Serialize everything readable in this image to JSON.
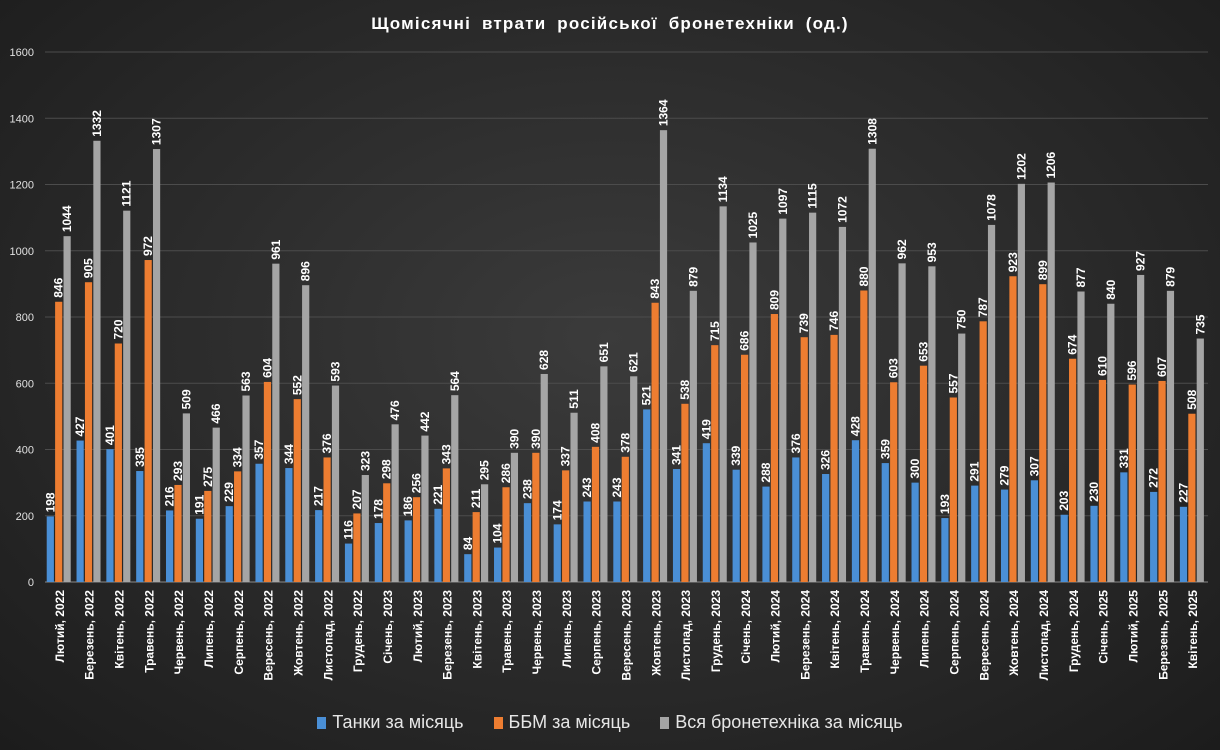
{
  "chart_data": {
    "type": "bar",
    "title": "Щомісячні  втрати  російської  бронетехніки  (од.)",
    "xlabel": "",
    "ylabel": "",
    "ylim": [
      0,
      1600
    ],
    "yticks": [
      "0",
      "200",
      "400",
      "600",
      "800",
      "1000",
      "1200",
      "1400",
      "1600"
    ],
    "grid": true,
    "legend_position": "bottom",
    "categories": [
      "Лютий, 2022",
      "Березень, 2022",
      "Квітень, 2022",
      "Травень, 2022",
      "Червень, 2022",
      "Липень, 2022",
      "Серпень, 2022",
      "Вересень, 2022",
      "Жовтень, 2022",
      "Листопад, 2022",
      "Грудень, 2022",
      "Січень, 2023",
      "Лютий, 2023",
      "Березень, 2023",
      "Квітень, 2023",
      "Травень, 2023",
      "Червень, 2023",
      "Липень, 2023",
      "Серпень, 2023",
      "Вересень, 2023",
      "Жовтень, 2023",
      "Листопад, 2023",
      "Грудень, 2023",
      "Січень, 2024",
      "Лютий, 2024",
      "Березень, 2024",
      "Квітень, 2024",
      "Травень, 2024",
      "Червень, 2024",
      "Липень, 2024",
      "Серпень, 2024",
      "Вересень, 2024",
      "Жовтень, 2024",
      "Листопад, 2024",
      "Грудень, 2024",
      "Січень, 2025",
      "Лютий, 2025",
      "Березень, 2025",
      "Квітень, 2025"
    ],
    "series": [
      {
        "name": "Танки за місяць",
        "color": "#4a8fd6",
        "values": [
          198,
          427,
          401,
          335,
          216,
          191,
          229,
          357,
          344,
          217,
          116,
          178,
          186,
          221,
          84,
          104,
          238,
          174,
          243,
          243,
          521,
          341,
          419,
          339,
          288,
          376,
          326,
          428,
          359,
          300,
          193,
          291,
          279,
          307,
          203,
          230,
          331,
          272,
          227
        ]
      },
      {
        "name": "ББМ за місяць",
        "color": "#ed7d31",
        "values": [
          846,
          905,
          720,
          972,
          293,
          275,
          334,
          604,
          552,
          376,
          207,
          298,
          256,
          343,
          211,
          286,
          390,
          337,
          408,
          378,
          843,
          538,
          715,
          686,
          809,
          739,
          746,
          880,
          603,
          653,
          557,
          787,
          923,
          899,
          674,
          610,
          596,
          607,
          508
        ]
      },
      {
        "name": "Вся бронетехніка за місяць",
        "color": "#a5a5a5",
        "values": [
          1044,
          1332,
          1121,
          1307,
          509,
          466,
          563,
          961,
          896,
          593,
          323,
          476,
          442,
          564,
          295,
          390,
          628,
          511,
          651,
          621,
          1364,
          879,
          1134,
          1025,
          1097,
          1115,
          1072,
          1308,
          962,
          953,
          750,
          1078,
          1202,
          1206,
          877,
          840,
          927,
          879,
          735
        ]
      }
    ]
  }
}
